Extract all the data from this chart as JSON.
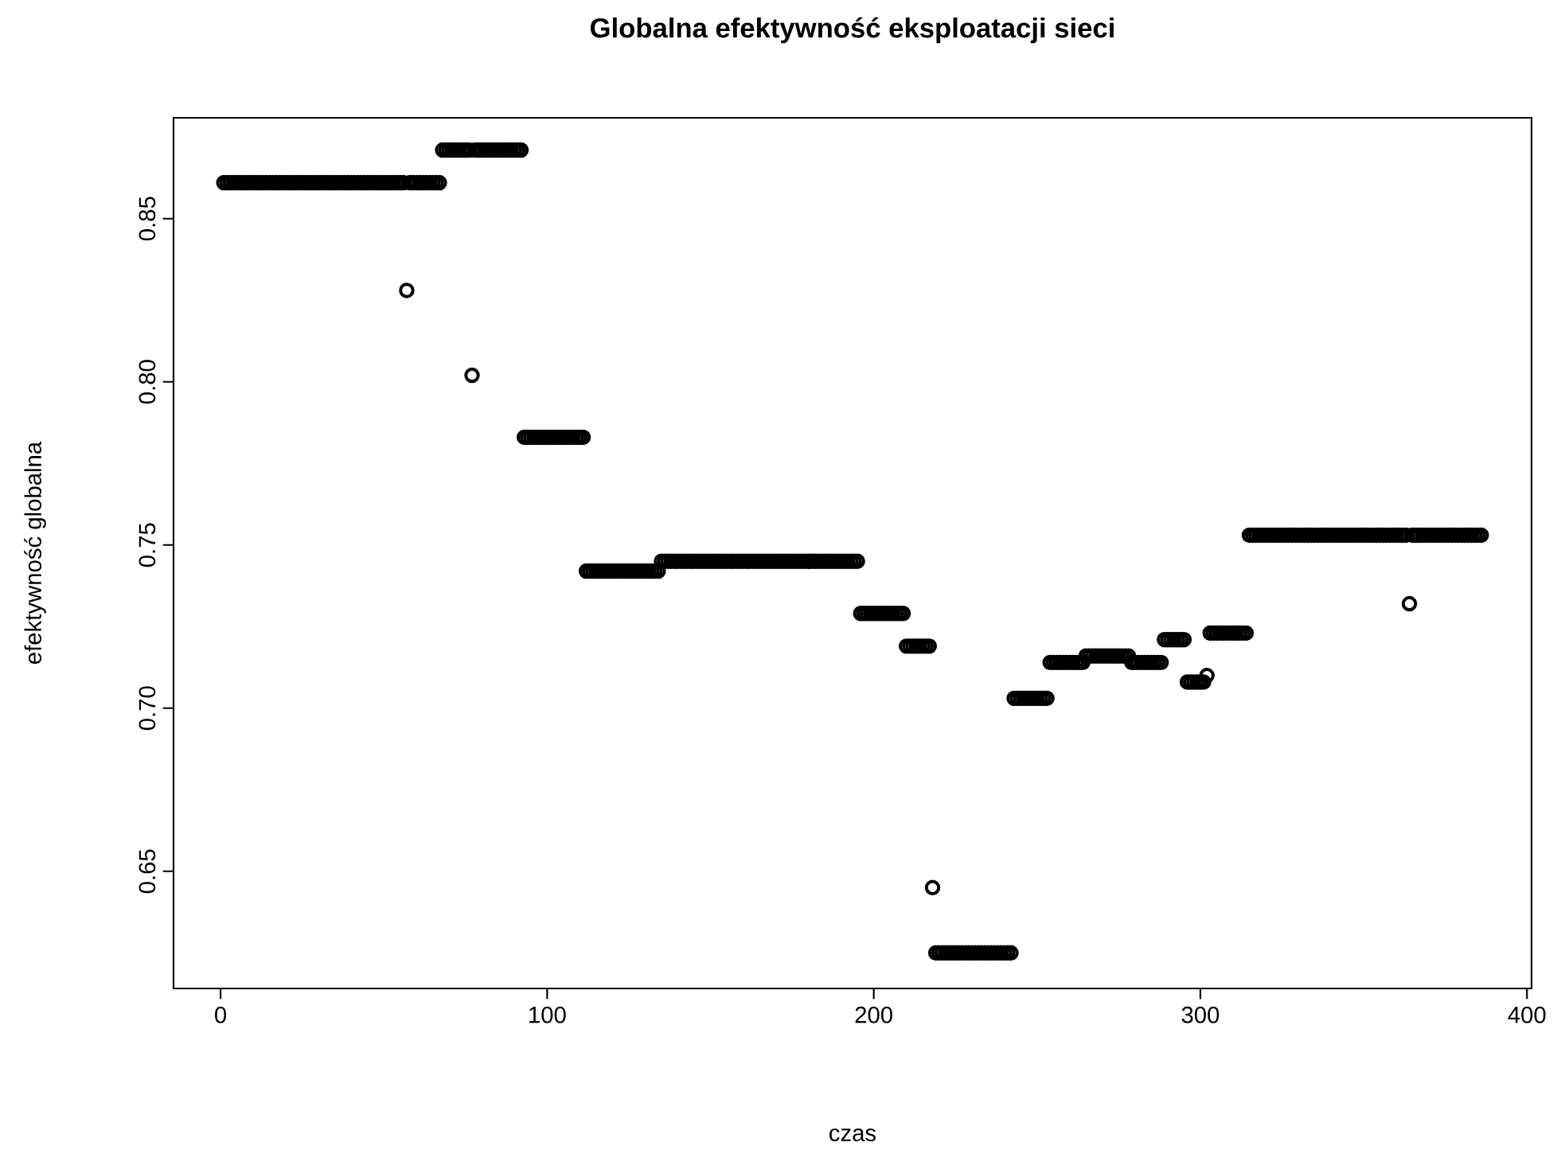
{
  "chart_data": {
    "type": "scatter",
    "title": "Globalna efektywność eksploatacji sieci",
    "xlabel": "czas",
    "ylabel": "efektywność globalna",
    "color": "#000000",
    "marker": "circle",
    "xlim": [
      -14.4,
      401.4
    ],
    "ylim": [
      0.6141,
      0.8809
    ],
    "xticks": [
      0,
      100,
      200,
      300,
      400
    ],
    "yticks": [
      0.65,
      {
        "value": 0.7,
        "label": "0.70"
      },
      0.75,
      {
        "value": 0.8,
        "label": "0.80"
      },
      0.85
    ],
    "x": [
      1,
      2,
      3,
      4,
      5,
      6,
      7,
      8,
      9,
      10,
      11,
      12,
      13,
      14,
      15,
      16,
      17,
      18,
      19,
      20,
      21,
      22,
      23,
      24,
      25,
      26,
      27,
      28,
      29,
      30,
      31,
      32,
      33,
      34,
      35,
      36,
      37,
      38,
      39,
      40,
      41,
      42,
      43,
      44,
      45,
      46,
      47,
      48,
      49,
      50,
      51,
      52,
      53,
      54,
      55,
      56,
      57,
      58,
      59,
      60,
      61,
      62,
      63,
      64,
      65,
      66,
      67,
      68,
      69,
      70,
      71,
      72,
      73,
      74,
      75,
      76,
      77,
      78,
      79,
      80,
      81,
      82,
      83,
      84,
      85,
      86,
      87,
      88,
      89,
      90,
      91,
      92,
      93,
      94,
      95,
      96,
      97,
      98,
      99,
      100,
      101,
      102,
      103,
      104,
      105,
      106,
      107,
      108,
      109,
      110,
      111,
      112,
      113,
      114,
      115,
      116,
      117,
      118,
      119,
      120,
      121,
      122,
      123,
      124,
      125,
      126,
      127,
      128,
      129,
      130,
      131,
      132,
      133,
      134,
      135,
      136,
      137,
      138,
      139,
      140,
      141,
      142,
      143,
      144,
      145,
      146,
      147,
      148,
      149,
      150,
      151,
      152,
      153,
      154,
      155,
      156,
      157,
      158,
      159,
      160,
      161,
      162,
      163,
      164,
      165,
      166,
      167,
      168,
      169,
      170,
      171,
      172,
      173,
      174,
      175,
      176,
      177,
      178,
      179,
      180,
      181,
      182,
      183,
      184,
      185,
      186,
      187,
      188,
      189,
      190,
      191,
      192,
      193,
      194,
      195,
      196,
      197,
      198,
      199,
      200,
      201,
      202,
      203,
      204,
      205,
      206,
      207,
      208,
      209,
      210,
      211,
      212,
      213,
      214,
      215,
      216,
      217,
      218,
      219,
      220,
      221,
      222,
      223,
      224,
      225,
      226,
      227,
      228,
      229,
      230,
      231,
      232,
      233,
      234,
      235,
      236,
      237,
      238,
      239,
      240,
      241,
      242,
      243,
      244,
      245,
      246,
      247,
      248,
      249,
      250,
      251,
      252,
      253,
      254,
      255,
      256,
      257,
      258,
      259,
      260,
      261,
      262,
      263,
      264,
      265,
      266,
      267,
      268,
      269,
      270,
      271,
      272,
      273,
      274,
      275,
      276,
      277,
      278,
      279,
      280,
      281,
      282,
      283,
      284,
      285,
      286,
      287,
      288,
      289,
      290,
      291,
      292,
      293,
      294,
      295,
      296,
      297,
      298,
      299,
      300,
      301,
      302,
      303,
      304,
      305,
      306,
      307,
      308,
      309,
      310,
      311,
      312,
      313,
      314,
      315,
      316,
      317,
      318,
      319,
      320,
      321,
      322,
      323,
      324,
      325,
      326,
      327,
      328,
      329,
      330,
      331,
      332,
      333,
      334,
      335,
      336,
      337,
      338,
      339,
      340,
      341,
      342,
      343,
      344,
      345,
      346,
      347,
      348,
      349,
      350,
      351,
      352,
      353,
      354,
      355,
      356,
      357,
      358,
      359,
      360,
      361,
      362,
      363,
      364,
      365,
      366,
      367,
      368,
      369,
      370,
      371,
      372,
      373,
      374,
      375,
      376,
      377,
      378,
      379,
      380,
      381,
      382,
      383,
      384,
      385,
      386
    ],
    "values": [
      0.861,
      0.861,
      0.861,
      0.861,
      0.861,
      0.861,
      0.861,
      0.861,
      0.861,
      0.861,
      0.861,
      0.861,
      0.861,
      0.861,
      0.861,
      0.861,
      0.861,
      0.861,
      0.861,
      0.861,
      0.861,
      0.861,
      0.861,
      0.861,
      0.861,
      0.861,
      0.861,
      0.861,
      0.861,
      0.861,
      0.861,
      0.861,
      0.861,
      0.861,
      0.861,
      0.861,
      0.861,
      0.861,
      0.861,
      0.861,
      0.861,
      0.861,
      0.861,
      0.861,
      0.861,
      0.861,
      0.861,
      0.861,
      0.861,
      0.861,
      0.861,
      0.861,
      0.861,
      0.861,
      0.861,
      0.861,
      0.828,
      0.861,
      0.861,
      0.861,
      0.861,
      0.861,
      0.861,
      0.861,
      0.861,
      0.861,
      0.861,
      0.871,
      0.871,
      0.871,
      0.871,
      0.871,
      0.871,
      0.871,
      0.871,
      0.871,
      0.802,
      0.871,
      0.871,
      0.871,
      0.871,
      0.871,
      0.871,
      0.871,
      0.871,
      0.871,
      0.871,
      0.871,
      0.871,
      0.871,
      0.871,
      0.871,
      0.783,
      0.783,
      0.783,
      0.783,
      0.783,
      0.783,
      0.783,
      0.783,
      0.783,
      0.783,
      0.783,
      0.783,
      0.783,
      0.783,
      0.783,
      0.783,
      0.783,
      0.783,
      0.783,
      0.742,
      0.742,
      0.742,
      0.742,
      0.742,
      0.742,
      0.742,
      0.742,
      0.742,
      0.742,
      0.742,
      0.742,
      0.742,
      0.742,
      0.742,
      0.742,
      0.742,
      0.742,
      0.742,
      0.742,
      0.742,
      0.742,
      0.742,
      0.745,
      0.745,
      0.745,
      0.745,
      0.745,
      0.745,
      0.745,
      0.745,
      0.745,
      0.745,
      0.745,
      0.745,
      0.745,
      0.745,
      0.745,
      0.745,
      0.745,
      0.745,
      0.745,
      0.745,
      0.745,
      0.745,
      0.745,
      0.745,
      0.745,
      0.745,
      0.745,
      0.745,
      0.745,
      0.745,
      0.745,
      0.745,
      0.745,
      0.745,
      0.745,
      0.745,
      0.745,
      0.745,
      0.745,
      0.745,
      0.745,
      0.745,
      0.745,
      0.745,
      0.745,
      0.745,
      0.745,
      0.745,
      0.745,
      0.745,
      0.745,
      0.745,
      0.745,
      0.745,
      0.745,
      0.745,
      0.745,
      0.745,
      0.745,
      0.745,
      0.745,
      0.729,
      0.729,
      0.729,
      0.729,
      0.729,
      0.729,
      0.729,
      0.729,
      0.729,
      0.729,
      0.729,
      0.729,
      0.729,
      0.729,
      0.719,
      0.719,
      0.719,
      0.719,
      0.719,
      0.719,
      0.719,
      0.719,
      0.645,
      0.625,
      0.625,
      0.625,
      0.625,
      0.625,
      0.625,
      0.625,
      0.625,
      0.625,
      0.625,
      0.625,
      0.625,
      0.625,
      0.625,
      0.625,
      0.625,
      0.625,
      0.625,
      0.625,
      0.625,
      0.625,
      0.625,
      0.625,
      0.625,
      0.703,
      0.703,
      0.703,
      0.703,
      0.703,
      0.703,
      0.703,
      0.703,
      0.703,
      0.703,
      0.703,
      0.714,
      0.714,
      0.714,
      0.714,
      0.714,
      0.714,
      0.714,
      0.714,
      0.714,
      0.714,
      0.714,
      0.716,
      0.716,
      0.716,
      0.716,
      0.716,
      0.716,
      0.716,
      0.716,
      0.716,
      0.716,
      0.716,
      0.716,
      0.716,
      0.716,
      0.714,
      0.714,
      0.714,
      0.714,
      0.714,
      0.714,
      0.714,
      0.714,
      0.714,
      0.714,
      0.721,
      0.721,
      0.721,
      0.721,
      0.721,
      0.721,
      0.721,
      0.708,
      0.708,
      0.708,
      0.708,
      0.708,
      0.708,
      0.71,
      0.723,
      0.723,
      0.723,
      0.723,
      0.723,
      0.723,
      0.723,
      0.723,
      0.723,
      0.723,
      0.723,
      0.723,
      0.753,
      0.753,
      0.753,
      0.753,
      0.753,
      0.753,
      0.753,
      0.753,
      0.753,
      0.753,
      0.753,
      0.753,
      0.753,
      0.753,
      0.753,
      0.753,
      0.753,
      0.753,
      0.753,
      0.753,
      0.753,
      0.753,
      0.753,
      0.753,
      0.753,
      0.753,
      0.753,
      0.753,
      0.753,
      0.753,
      0.753,
      0.753,
      0.753,
      0.753,
      0.753,
      0.753,
      0.753,
      0.753,
      0.753,
      0.753,
      0.753,
      0.753,
      0.753,
      0.753,
      0.753,
      0.753,
      0.753,
      0.753,
      0.753,
      0.732,
      0.753,
      0.753,
      0.753,
      0.753,
      0.753,
      0.753,
      0.753,
      0.753,
      0.753,
      0.753,
      0.753,
      0.753,
      0.753,
      0.753,
      0.753,
      0.753,
      0.753,
      0.753,
      0.753,
      0.753,
      0.753,
      0.753
    ]
  }
}
